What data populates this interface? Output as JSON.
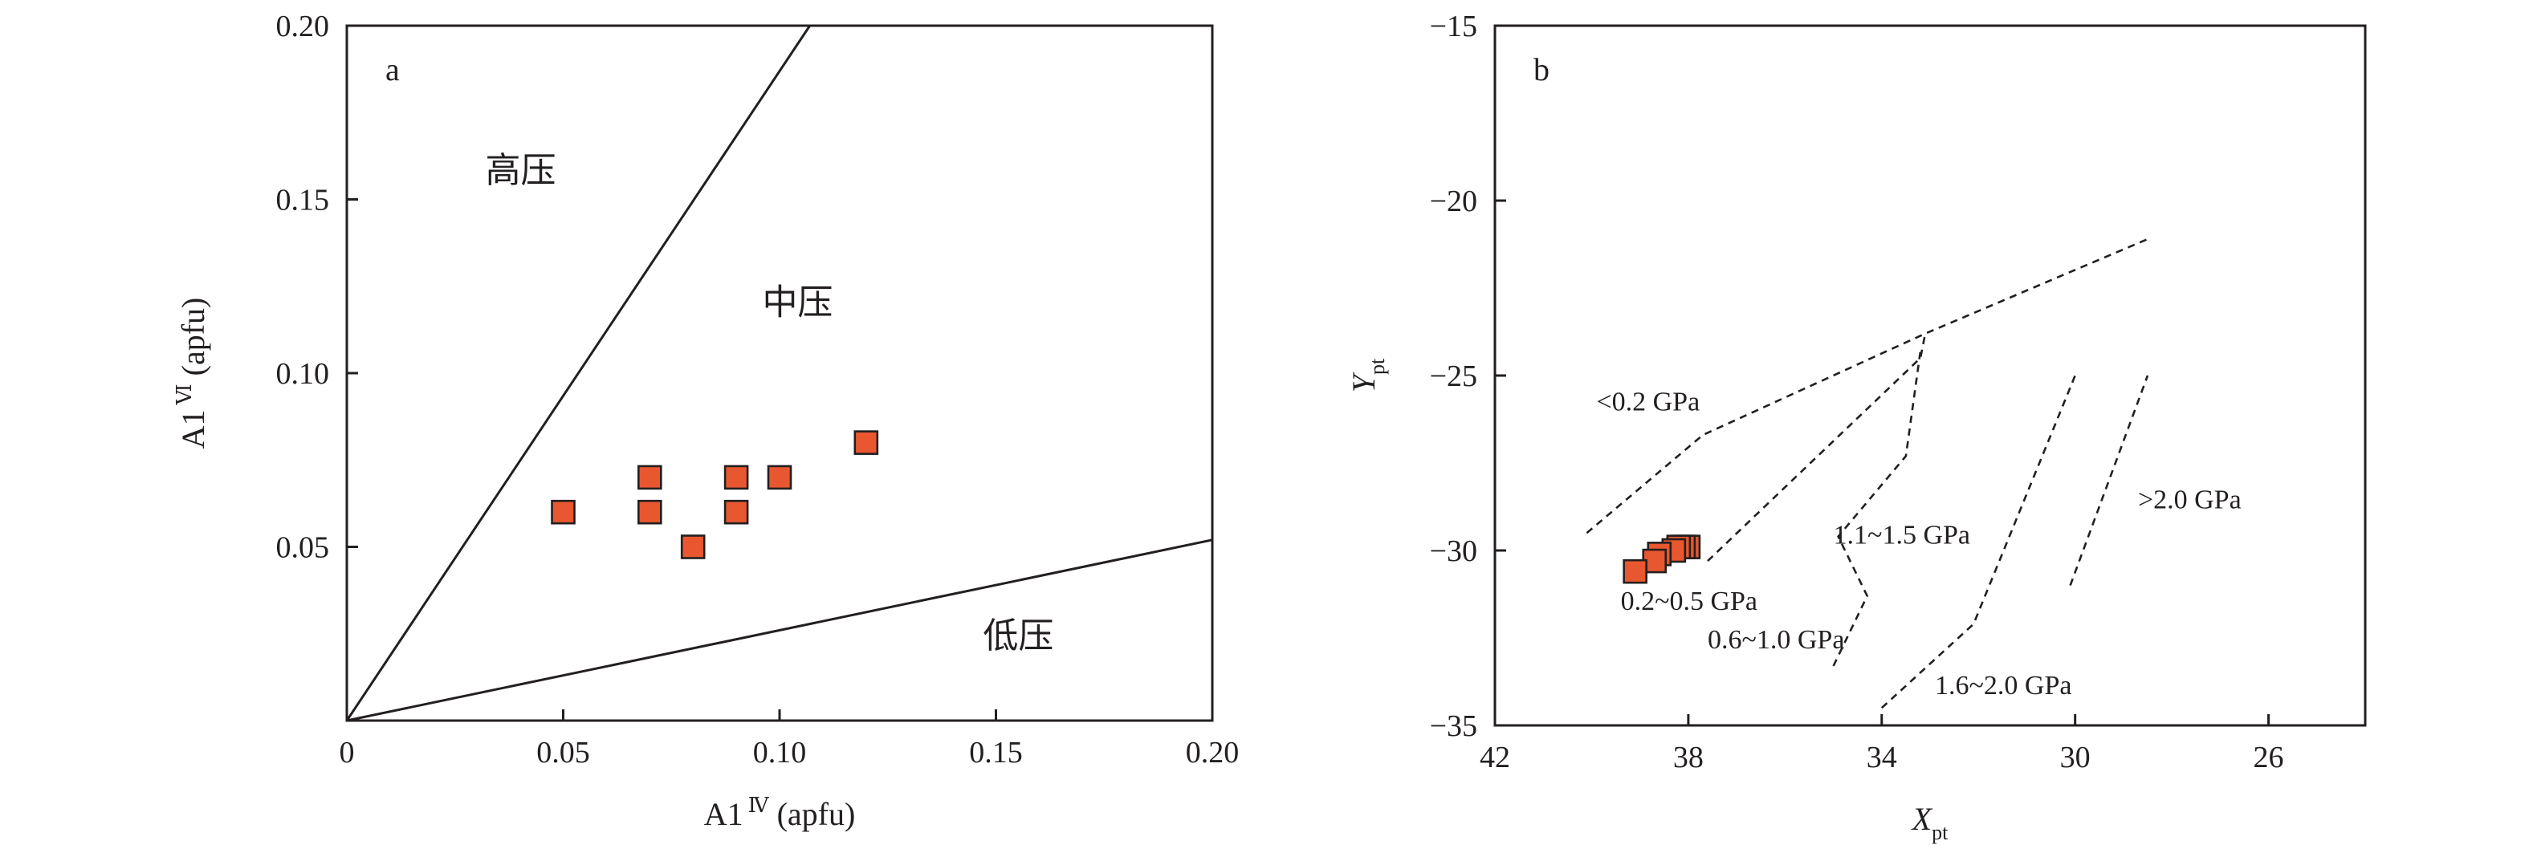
{
  "chart_data": [
    {
      "panel_id": "a",
      "type": "scatter",
      "panel_label": "a",
      "xlabel": {
        "main": "A1",
        "superscript": "Ⅳ",
        "units": " (apfu)"
      },
      "ylabel": {
        "main": "A1",
        "superscript": "Ⅵ",
        "units": " (apfu)"
      },
      "xlim": [
        0,
        0.2
      ],
      "ylim": [
        0,
        0.2
      ],
      "x_ticks": [
        {
          "value": 0,
          "label": "0"
        },
        {
          "value": 0.05,
          "label": "0.05"
        },
        {
          "value": 0.1,
          "label": "0.10"
        },
        {
          "value": 0.15,
          "label": "0.15"
        },
        {
          "value": 0.2,
          "label": "0.20"
        }
      ],
      "y_ticks": [
        {
          "value": 0.05,
          "label": "0.05"
        },
        {
          "value": 0.1,
          "label": "0.10"
        },
        {
          "value": 0.15,
          "label": "0.15"
        },
        {
          "value": 0.2,
          "label": "0.20"
        }
      ],
      "grid": false,
      "marker": {
        "shape": "square",
        "fill": "#e8572f",
        "edge": "#231f20"
      },
      "points": [
        {
          "x": 0.05,
          "y": 0.06
        },
        {
          "x": 0.07,
          "y": 0.07
        },
        {
          "x": 0.07,
          "y": 0.06
        },
        {
          "x": 0.08,
          "y": 0.05
        },
        {
          "x": 0.09,
          "y": 0.07
        },
        {
          "x": 0.09,
          "y": 0.06
        },
        {
          "x": 0.1,
          "y": 0.07
        },
        {
          "x": 0.12,
          "y": 0.08
        }
      ],
      "boundary_lines": [
        {
          "style": "solid",
          "points": [
            [
              0,
              0
            ],
            [
              0.107,
              0.2
            ]
          ]
        },
        {
          "style": "solid",
          "points": [
            [
              0,
              0
            ],
            [
              0.2,
              0.052
            ]
          ]
        }
      ],
      "annotations": [
        {
          "text": "高压",
          "x": 0.032,
          "y": 0.155
        },
        {
          "text": "中压",
          "x": 0.096,
          "y": 0.117
        },
        {
          "text": "低压",
          "x": 0.147,
          "y": 0.021
        }
      ]
    },
    {
      "panel_id": "b",
      "type": "scatter",
      "panel_label": "b",
      "xlabel": {
        "main": "X",
        "subscript": "pt"
      },
      "ylabel": {
        "main": "Y",
        "subscript": "pt"
      },
      "xlim": [
        42,
        24
      ],
      "ylim": [
        -35,
        -15
      ],
      "x_reversed": true,
      "x_ticks": [
        {
          "value": 42,
          "label": "42"
        },
        {
          "value": 38,
          "label": "38"
        },
        {
          "value": 34,
          "label": "34"
        },
        {
          "value": 30,
          "label": "30"
        },
        {
          "value": 26,
          "label": "26"
        }
      ],
      "y_ticks": [
        {
          "value": -15,
          "label": "−15"
        },
        {
          "value": -20,
          "label": "−20"
        },
        {
          "value": -25,
          "label": "−25"
        },
        {
          "value": -30,
          "label": "−30"
        },
        {
          "value": -35,
          "label": "−35"
        }
      ],
      "grid": false,
      "marker": {
        "shape": "square",
        "fill": "#e8572f",
        "edge": "#231f20"
      },
      "points": [
        {
          "x": 38.0,
          "y": -29.9
        },
        {
          "x": 38.1,
          "y": -29.9
        },
        {
          "x": 38.2,
          "y": -29.9
        },
        {
          "x": 38.3,
          "y": -30.0
        },
        {
          "x": 38.6,
          "y": -30.1
        },
        {
          "x": 38.7,
          "y": -30.3
        },
        {
          "x": 39.1,
          "y": -30.6
        }
      ],
      "field_lines": [
        {
          "style": "dashed",
          "points": [
            [
              40.1,
              -29.5
            ],
            [
              37.7,
              -26.7
            ],
            [
              33.1,
              -23.8
            ],
            [
              28.5,
              -21.1
            ]
          ]
        },
        {
          "style": "dashed",
          "points": [
            [
              37.6,
              -30.3
            ],
            [
              33.2,
              -24.5
            ],
            [
              33.1,
              -23.8
            ]
          ]
        },
        {
          "style": "dashed",
          "points": [
            [
              35.0,
              -33.3
            ],
            [
              34.3,
              -31.3
            ],
            [
              34.9,
              -29.6
            ],
            [
              33.5,
              -27.3
            ],
            [
              33.2,
              -24.3
            ]
          ]
        },
        {
          "style": "dashed",
          "points": [
            [
              34.0,
              -34.5
            ],
            [
              32.1,
              -32.1
            ],
            [
              30.0,
              -25.0
            ]
          ]
        },
        {
          "style": "dashed",
          "points": [
            [
              30.1,
              -31.0
            ],
            [
              28.5,
              -25.0
            ]
          ]
        }
      ],
      "annotations": [
        {
          "text": "<0.2 GPa",
          "x": 39.9,
          "y": -26.0
        },
        {
          "text": "0.2~0.5 GPa",
          "x": 39.4,
          "y": -31.7
        },
        {
          "text": "0.6~1.0 GPa",
          "x": 37.6,
          "y": -32.8
        },
        {
          "text": "1.1~1.5 GPa",
          "x": 35.0,
          "y": -29.8
        },
        {
          "text": "1.6~2.0 GPa",
          "x": 32.9,
          "y": -34.1
        },
        {
          "text": ">2.0 GPa",
          "x": 28.7,
          "y": -28.8
        }
      ]
    }
  ]
}
